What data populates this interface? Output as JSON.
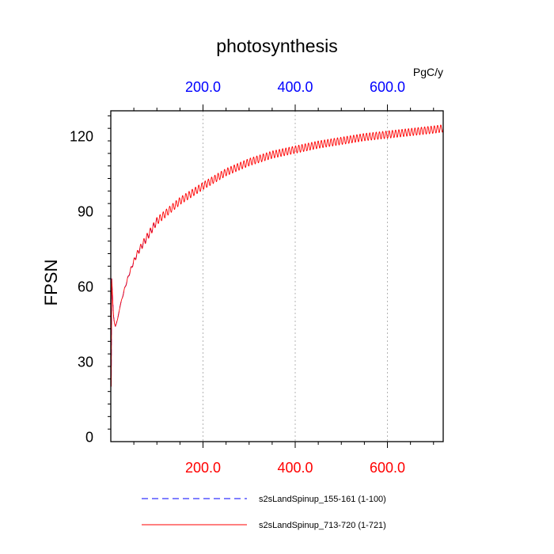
{
  "chart_data": {
    "type": "line",
    "title": "photosynthesis",
    "ylabel": "FPSN",
    "units_label": "PgC/y",
    "xlim": [
      0,
      721
    ],
    "ylim": [
      -2,
      130
    ],
    "yticks": [
      {
        "value": 0,
        "label": "0"
      },
      {
        "value": 30,
        "label": "30"
      },
      {
        "value": 60,
        "label": "60"
      },
      {
        "value": 90,
        "label": "90"
      },
      {
        "value": 120,
        "label": "120"
      }
    ],
    "ygrid_minor_step": 5,
    "top_axis": {
      "color": "#0000ff",
      "ticks": [
        {
          "value": 200,
          "label": "200.0"
        },
        {
          "value": 400,
          "label": "400.0"
        },
        {
          "value": 600,
          "label": "600.0"
        }
      ]
    },
    "bottom_axis": {
      "color": "#ff0000",
      "ticks": [
        {
          "value": 200,
          "label": "200.0"
        },
        {
          "value": 400,
          "label": "400.0"
        },
        {
          "value": 600,
          "label": "600.0"
        }
      ]
    },
    "x_minor_step": 50,
    "x_gridlines": [
      200,
      400,
      600
    ],
    "series": [
      {
        "name": "s2sLandSpinup_155-161 (1-100)",
        "color": "#0000ff",
        "dash": "8 5",
        "x_range": [
          1,
          100
        ],
        "x": [
          1,
          2,
          4,
          6,
          8,
          10,
          15,
          20,
          30,
          40,
          50,
          60,
          70,
          80,
          90,
          100
        ],
        "y": [
          20,
          63,
          55,
          48,
          45,
          44,
          47,
          52,
          59,
          65,
          70,
          74,
          77,
          80,
          83,
          86
        ],
        "cycle_amplitude": 1.0
      },
      {
        "name": "s2sLandSpinup_713-720 (1-721)",
        "color": "#ff0000",
        "dash": "",
        "x_range": [
          1,
          721
        ],
        "x": [
          1,
          2,
          4,
          6,
          8,
          10,
          15,
          20,
          30,
          40,
          50,
          60,
          80,
          100,
          150,
          200,
          250,
          300,
          350,
          400,
          450,
          500,
          550,
          600,
          650,
          700,
          721
        ],
        "y": [
          20,
          63,
          55,
          48,
          45,
          44,
          47,
          52,
          59,
          65,
          70,
          74,
          80,
          86,
          94,
          100,
          105.5,
          109.5,
          112.5,
          114.5,
          116.5,
          118,
          119.5,
          120.5,
          121.5,
          122.5,
          123
        ],
        "cycle_amplitude": 1.5
      }
    ]
  }
}
